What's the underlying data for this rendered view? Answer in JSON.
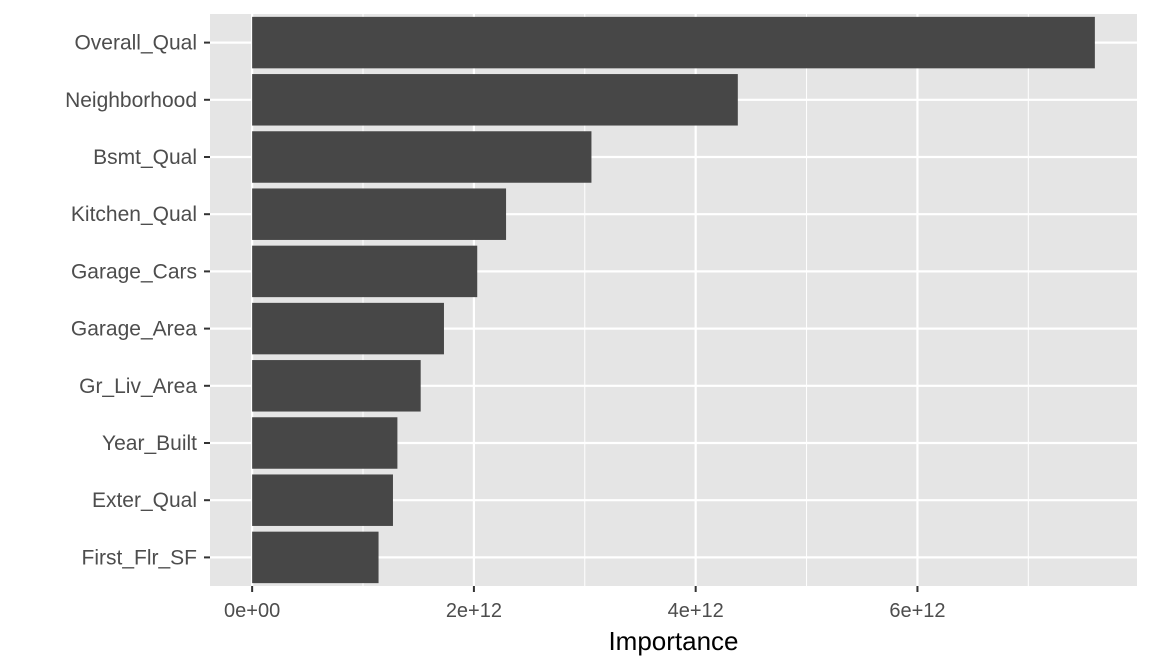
{
  "chart_data": {
    "type": "bar",
    "orientation": "horizontal",
    "categories": [
      "Overall_Qual",
      "Neighborhood",
      "Bsmt_Qual",
      "Kitchen_Qual",
      "Garage_Cars",
      "Garage_Area",
      "Gr_Liv_Area",
      "Year_Built",
      "Exter_Qual",
      "First_Flr_SF"
    ],
    "values": [
      7600000000000.0,
      4380000000000.0,
      3060000000000.0,
      2290000000000.0,
      2030000000000.0,
      1730000000000.0,
      1520000000000.0,
      1310000000000.0,
      1270000000000.0,
      1140000000000.0
    ],
    "xlabel": "Importance",
    "ylabel": "",
    "xlim": [
      -380000000000.0,
      7980000000000.0
    ],
    "x_ticks": [
      0,
      2000000000000.0,
      4000000000000.0,
      6000000000000.0
    ],
    "x_tick_labels": [
      "0e+00",
      "2e+12",
      "4e+12",
      "6e+12"
    ],
    "grid": true,
    "colors": {
      "bar": "#474747",
      "panel": "#e5e5e5",
      "grid": "#ffffff",
      "tick_text": "#4d4d4d",
      "axis_title": "#000000"
    }
  }
}
